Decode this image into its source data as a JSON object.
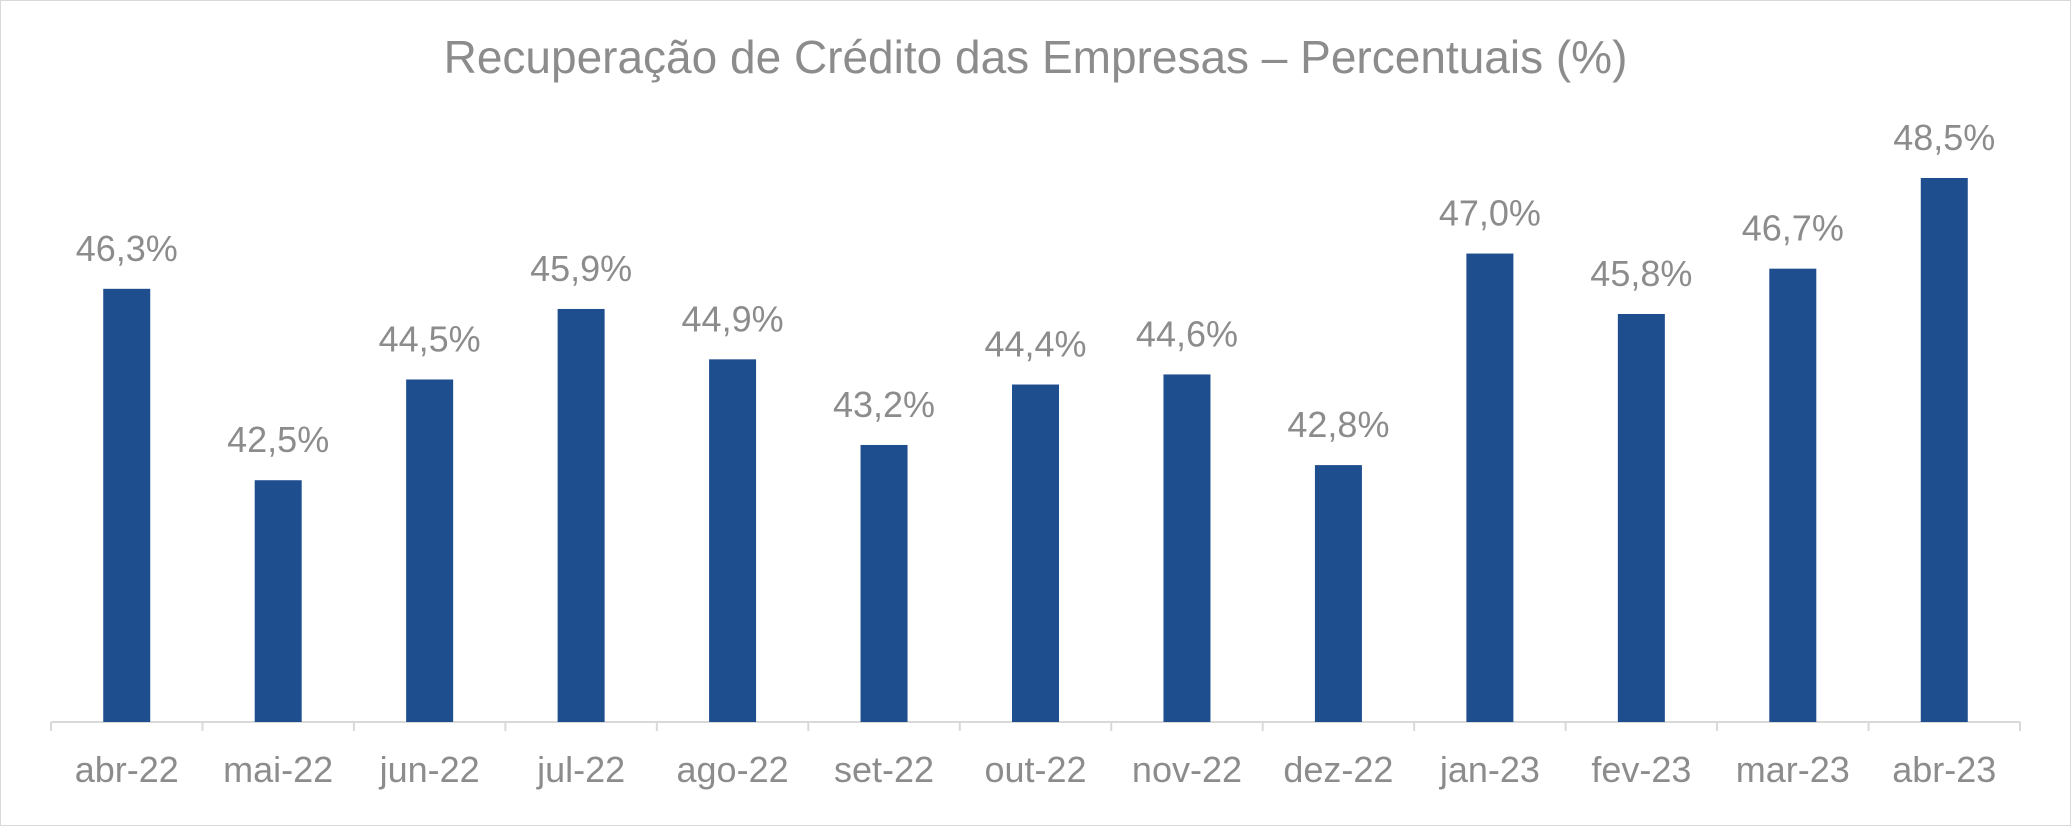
{
  "chart_data": {
    "type": "bar",
    "title": "Recuperação de Crédito das Empresas – Percentuais (%)",
    "xlabel": "",
    "ylabel": "",
    "categories": [
      "abr-22",
      "mai-22",
      "jun-22",
      "jul-22",
      "ago-22",
      "set-22",
      "out-22",
      "nov-22",
      "dez-22",
      "jan-23",
      "fev-23",
      "mar-23",
      "abr-23"
    ],
    "values": [
      46.3,
      42.5,
      44.5,
      45.9,
      44.9,
      43.2,
      44.4,
      44.6,
      42.8,
      47.0,
      45.8,
      46.7,
      48.5
    ],
    "data_labels": [
      "46,3%",
      "42,5%",
      "44,5%",
      "45,9%",
      "44,9%",
      "43,2%",
      "44,4%",
      "44,6%",
      "42,8%",
      "47,0%",
      "45,8%",
      "46,7%",
      "48,5%"
    ],
    "ylim": [
      37.7,
      48.5
    ],
    "grid": false,
    "legend": "none",
    "colors": {
      "bar": "#1f4e8f",
      "text": "#8c8c8c",
      "axis": "#d9d9d9"
    }
  }
}
